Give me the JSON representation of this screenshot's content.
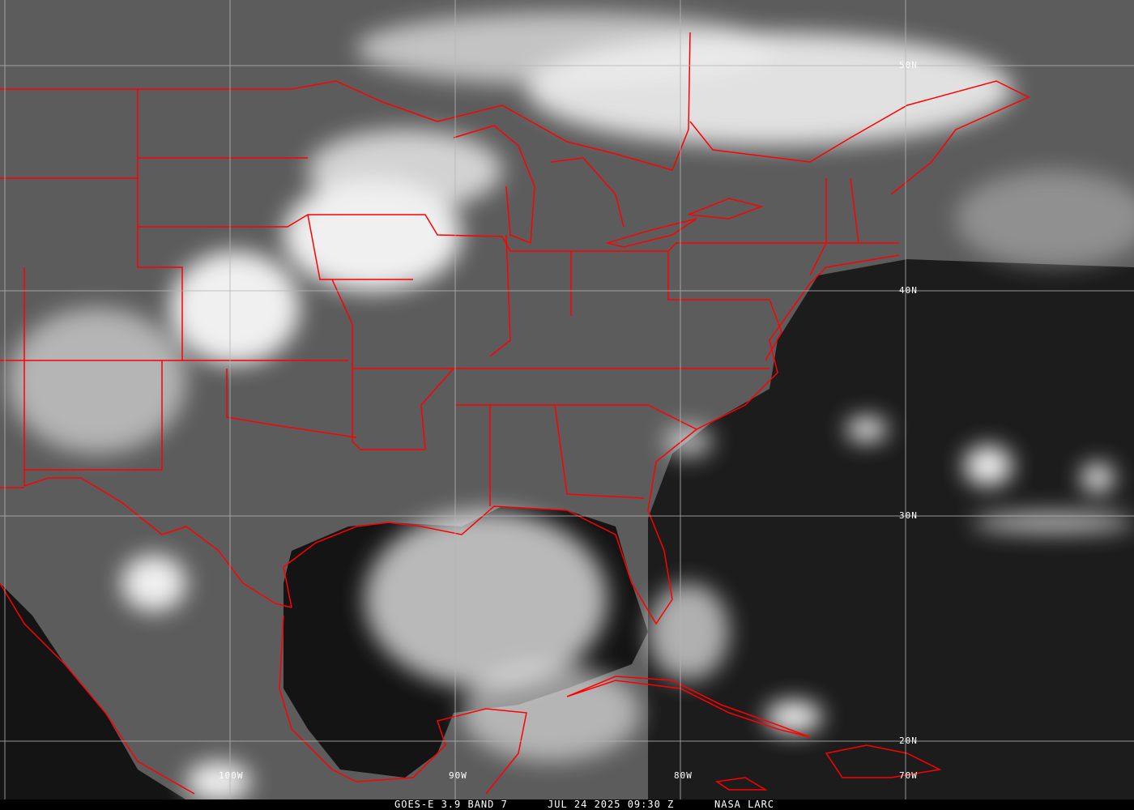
{
  "caption": {
    "satellite": "GOES-E 3.9 BAND 7",
    "datetime": "JUL 24 2025 09:30 Z",
    "credit": "NASA LARC"
  },
  "grid": {
    "latitudes": [
      "50N",
      "40N",
      "30N",
      "20N"
    ],
    "longitudes": [
      "100W",
      "90W",
      "80W",
      "70W"
    ]
  },
  "colors": {
    "boundaries": "#ff0000",
    "grid": "#b4b4b4",
    "land": "#5a5a5a",
    "ocean": "#1a1a1a",
    "cloud": "#f4f4f4"
  }
}
